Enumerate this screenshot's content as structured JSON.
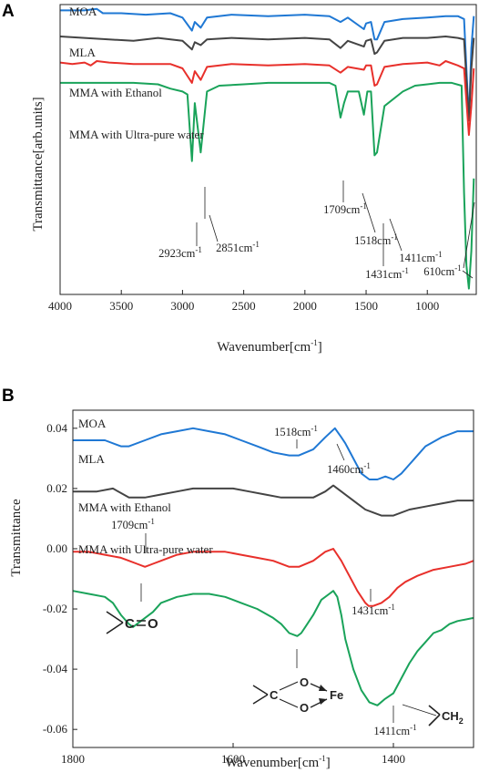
{
  "panel_a": {
    "letter": "A",
    "series_labels": [
      "MOA",
      "MLA",
      "MMA with Ethanol",
      "MMA with Ultra-pure water"
    ],
    "annotations": [
      {
        "text": "1709cm",
        "sup": "-1"
      },
      {
        "text": "2851cm",
        "sup": "-1"
      },
      {
        "text": "1518cm",
        "sup": "-1"
      },
      {
        "text": "1411cm",
        "sup": "-1"
      },
      {
        "text": "2923cm",
        "sup": "-1"
      },
      {
        "text": "1431cm",
        "sup": "-1"
      },
      {
        "text": "610cm",
        "sup": "-1"
      }
    ]
  },
  "panel_b": {
    "letter": "B",
    "series_labels": [
      "MOA",
      "MLA",
      "MMA with Ethanol",
      "MMA with Ultra-pure water"
    ],
    "annotations": [
      {
        "text": "1518cm",
        "sup": "-1"
      },
      {
        "text": "1460cm",
        "sup": "-1"
      },
      {
        "text": "1709cm",
        "sup": "-1"
      },
      {
        "text": "1431cm",
        "sup": "-1"
      },
      {
        "text": "1411cm",
        "sup": "-1"
      }
    ],
    "chem_labels": {
      "carbonyl_c": "C",
      "carbonyl_o": "O",
      "carboxyl_c": "C",
      "carboxyl_o1": "O",
      "carboxyl_o2": "O",
      "fe": "Fe",
      "ch2_ch": "CH",
      "ch2_sub": "2"
    }
  },
  "colors": {
    "MOA": "#1f78d4",
    "MLA": "#444444",
    "MMA with Ethanol": "#e8302b",
    "MMA with Ultra-pure water": "#1aa35a"
  },
  "chart_data": [
    {
      "type": "line",
      "xlabel": "Wavenumber[cm",
      "xlabel_sup": "-1",
      "xlabel_end": "]",
      "ylabel": "Transmittance[arb.units]",
      "xlim": [
        4000,
        600
      ],
      "x_reversed": true,
      "xticks": [
        4000,
        3500,
        3000,
        2500,
        2000,
        1500,
        1000
      ],
      "ylim": [
        0,
        1
      ],
      "yticks_shown": false,
      "series": [
        {
          "name": "MOA",
          "x": [
            4000,
            3800,
            3700,
            3650,
            3500,
            3300,
            3100,
            3000,
            2923,
            2900,
            2851,
            2800,
            2600,
            2300,
            2000,
            1800,
            1709,
            1650,
            1518,
            1500,
            1460,
            1431,
            1411,
            1350,
            1200,
            1000,
            850,
            750,
            700,
            660,
            640,
            620
          ],
          "y": [
            0.98,
            0.98,
            0.985,
            0.97,
            0.97,
            0.965,
            0.97,
            0.955,
            0.91,
            0.94,
            0.92,
            0.955,
            0.965,
            0.96,
            0.965,
            0.96,
            0.94,
            0.955,
            0.915,
            0.935,
            0.94,
            0.88,
            0.88,
            0.94,
            0.95,
            0.955,
            0.96,
            0.96,
            0.95,
            0.6,
            0.85,
            0.96
          ]
        },
        {
          "name": "MLA",
          "x": [
            4000,
            3800,
            3600,
            3400,
            3200,
            3000,
            2923,
            2900,
            2851,
            2800,
            2600,
            2300,
            2000,
            1800,
            1709,
            1650,
            1518,
            1500,
            1460,
            1431,
            1411,
            1350,
            1200,
            1000,
            850,
            750,
            700,
            660,
            640,
            620
          ],
          "y": [
            0.89,
            0.885,
            0.88,
            0.875,
            0.885,
            0.875,
            0.845,
            0.87,
            0.86,
            0.88,
            0.885,
            0.88,
            0.885,
            0.88,
            0.85,
            0.875,
            0.855,
            0.875,
            0.88,
            0.83,
            0.835,
            0.875,
            0.885,
            0.885,
            0.89,
            0.885,
            0.88,
            0.6,
            0.78,
            0.885
          ]
        },
        {
          "name": "MMA with Ethanol",
          "x": [
            4000,
            3900,
            3800,
            3750,
            3700,
            3600,
            3400,
            3100,
            3000,
            2923,
            2900,
            2851,
            2800,
            2600,
            2300,
            2000,
            1800,
            1709,
            1650,
            1518,
            1500,
            1460,
            1431,
            1411,
            1350,
            1200,
            1000,
            900,
            850,
            750,
            700,
            660,
            640,
            620
          ],
          "y": [
            0.8,
            0.795,
            0.8,
            0.79,
            0.805,
            0.8,
            0.795,
            0.795,
            0.78,
            0.73,
            0.77,
            0.74,
            0.785,
            0.795,
            0.79,
            0.795,
            0.79,
            0.765,
            0.785,
            0.775,
            0.79,
            0.79,
            0.72,
            0.725,
            0.785,
            0.795,
            0.8,
            0.79,
            0.805,
            0.79,
            0.78,
            0.55,
            0.65,
            0.78
          ]
        },
        {
          "name": "MMA with Ultra-pure water",
          "x": [
            4000,
            3800,
            3600,
            3400,
            3200,
            3100,
            3000,
            2960,
            2923,
            2900,
            2851,
            2800,
            2700,
            2500,
            2300,
            2000,
            1800,
            1750,
            1709,
            1680,
            1650,
            1560,
            1518,
            1490,
            1460,
            1431,
            1411,
            1350,
            1200,
            1100,
            1000,
            900,
            800,
            720,
            700,
            680,
            660,
            640,
            620
          ],
          "y": [
            0.73,
            0.73,
            0.73,
            0.73,
            0.725,
            0.71,
            0.7,
            0.69,
            0.46,
            0.66,
            0.49,
            0.7,
            0.72,
            0.725,
            0.73,
            0.73,
            0.73,
            0.72,
            0.61,
            0.66,
            0.7,
            0.7,
            0.62,
            0.7,
            0.7,
            0.48,
            0.49,
            0.65,
            0.7,
            0.72,
            0.725,
            0.73,
            0.73,
            0.72,
            0.35,
            0.1,
            0.02,
            0.15,
            0.4
          ]
        }
      ]
    },
    {
      "type": "line",
      "xlabel": "Wavenumber[cm",
      "xlabel_sup": "-1",
      "xlabel_end": "]",
      "ylabel": "Transmittance",
      "xlim": [
        1800,
        1300
      ],
      "x_reversed": true,
      "xticks": [
        1800,
        1600,
        1400
      ],
      "ylim": [
        -0.066,
        0.046
      ],
      "yticks": [
        0.04,
        0.02,
        0.0,
        -0.02,
        -0.04,
        -0.06
      ],
      "ytick_labels": [
        "0.04",
        "0.02",
        "0.00",
        "-0.02",
        "-0.04",
        "-0.06"
      ],
      "series": [
        {
          "name": "MOA",
          "x": [
            1800,
            1780,
            1760,
            1740,
            1730,
            1710,
            1690,
            1670,
            1650,
            1630,
            1610,
            1590,
            1570,
            1550,
            1530,
            1518,
            1500,
            1485,
            1473,
            1465,
            1460,
            1450,
            1440,
            1430,
            1420,
            1410,
            1400,
            1390,
            1380,
            1370,
            1360,
            1340,
            1320,
            1300
          ],
          "y": [
            0.036,
            0.036,
            0.036,
            0.034,
            0.034,
            0.036,
            0.038,
            0.039,
            0.04,
            0.039,
            0.038,
            0.036,
            0.034,
            0.032,
            0.031,
            0.031,
            0.033,
            0.037,
            0.04,
            0.037,
            0.035,
            0.03,
            0.025,
            0.023,
            0.023,
            0.024,
            0.023,
            0.025,
            0.028,
            0.031,
            0.034,
            0.037,
            0.039,
            0.039
          ]
        },
        {
          "name": "MLA",
          "x": [
            1800,
            1770,
            1750,
            1730,
            1710,
            1690,
            1670,
            1650,
            1620,
            1600,
            1580,
            1560,
            1540,
            1520,
            1500,
            1485,
            1475,
            1465,
            1455,
            1445,
            1435,
            1425,
            1415,
            1400,
            1380,
            1360,
            1340,
            1320,
            1300
          ],
          "y": [
            0.019,
            0.019,
            0.02,
            0.017,
            0.017,
            0.018,
            0.019,
            0.02,
            0.02,
            0.02,
            0.019,
            0.018,
            0.017,
            0.017,
            0.017,
            0.019,
            0.021,
            0.019,
            0.017,
            0.015,
            0.013,
            0.012,
            0.011,
            0.011,
            0.013,
            0.014,
            0.015,
            0.016,
            0.016
          ]
        },
        {
          "name": "MMA with Ethanol",
          "x": [
            1800,
            1780,
            1760,
            1740,
            1730,
            1720,
            1710,
            1700,
            1690,
            1670,
            1650,
            1630,
            1610,
            1590,
            1570,
            1550,
            1530,
            1518,
            1500,
            1485,
            1475,
            1465,
            1455,
            1445,
            1435,
            1431,
            1425,
            1415,
            1405,
            1395,
            1385,
            1370,
            1350,
            1330,
            1310,
            1300
          ],
          "y": [
            -0.001,
            -0.001,
            -0.002,
            -0.003,
            -0.004,
            -0.005,
            -0.006,
            -0.005,
            -0.004,
            -0.002,
            -0.001,
            -0.001,
            -0.001,
            -0.002,
            -0.003,
            -0.004,
            -0.006,
            -0.006,
            -0.004,
            -0.001,
            0.0,
            -0.004,
            -0.009,
            -0.014,
            -0.018,
            -0.019,
            -0.019,
            -0.018,
            -0.016,
            -0.013,
            -0.011,
            -0.009,
            -0.007,
            -0.006,
            -0.005,
            -0.004
          ]
        },
        {
          "name": "MMA with Ultra-pure water",
          "x": [
            1800,
            1780,
            1760,
            1750,
            1740,
            1730,
            1725,
            1720,
            1710,
            1700,
            1690,
            1670,
            1650,
            1630,
            1610,
            1590,
            1570,
            1550,
            1540,
            1530,
            1520,
            1515,
            1510,
            1500,
            1490,
            1480,
            1475,
            1470,
            1465,
            1460,
            1450,
            1440,
            1430,
            1420,
            1411,
            1400,
            1390,
            1380,
            1370,
            1360,
            1350,
            1340,
            1330,
            1320,
            1300
          ],
          "y": [
            -0.014,
            -0.015,
            -0.016,
            -0.018,
            -0.022,
            -0.025,
            -0.026,
            -0.025,
            -0.023,
            -0.021,
            -0.018,
            -0.016,
            -0.015,
            -0.015,
            -0.016,
            -0.018,
            -0.02,
            -0.023,
            -0.025,
            -0.028,
            -0.029,
            -0.028,
            -0.026,
            -0.022,
            -0.017,
            -0.015,
            -0.014,
            -0.016,
            -0.022,
            -0.03,
            -0.04,
            -0.047,
            -0.051,
            -0.052,
            -0.05,
            -0.048,
            -0.043,
            -0.038,
            -0.034,
            -0.031,
            -0.028,
            -0.027,
            -0.025,
            -0.024,
            -0.023
          ]
        }
      ]
    }
  ]
}
